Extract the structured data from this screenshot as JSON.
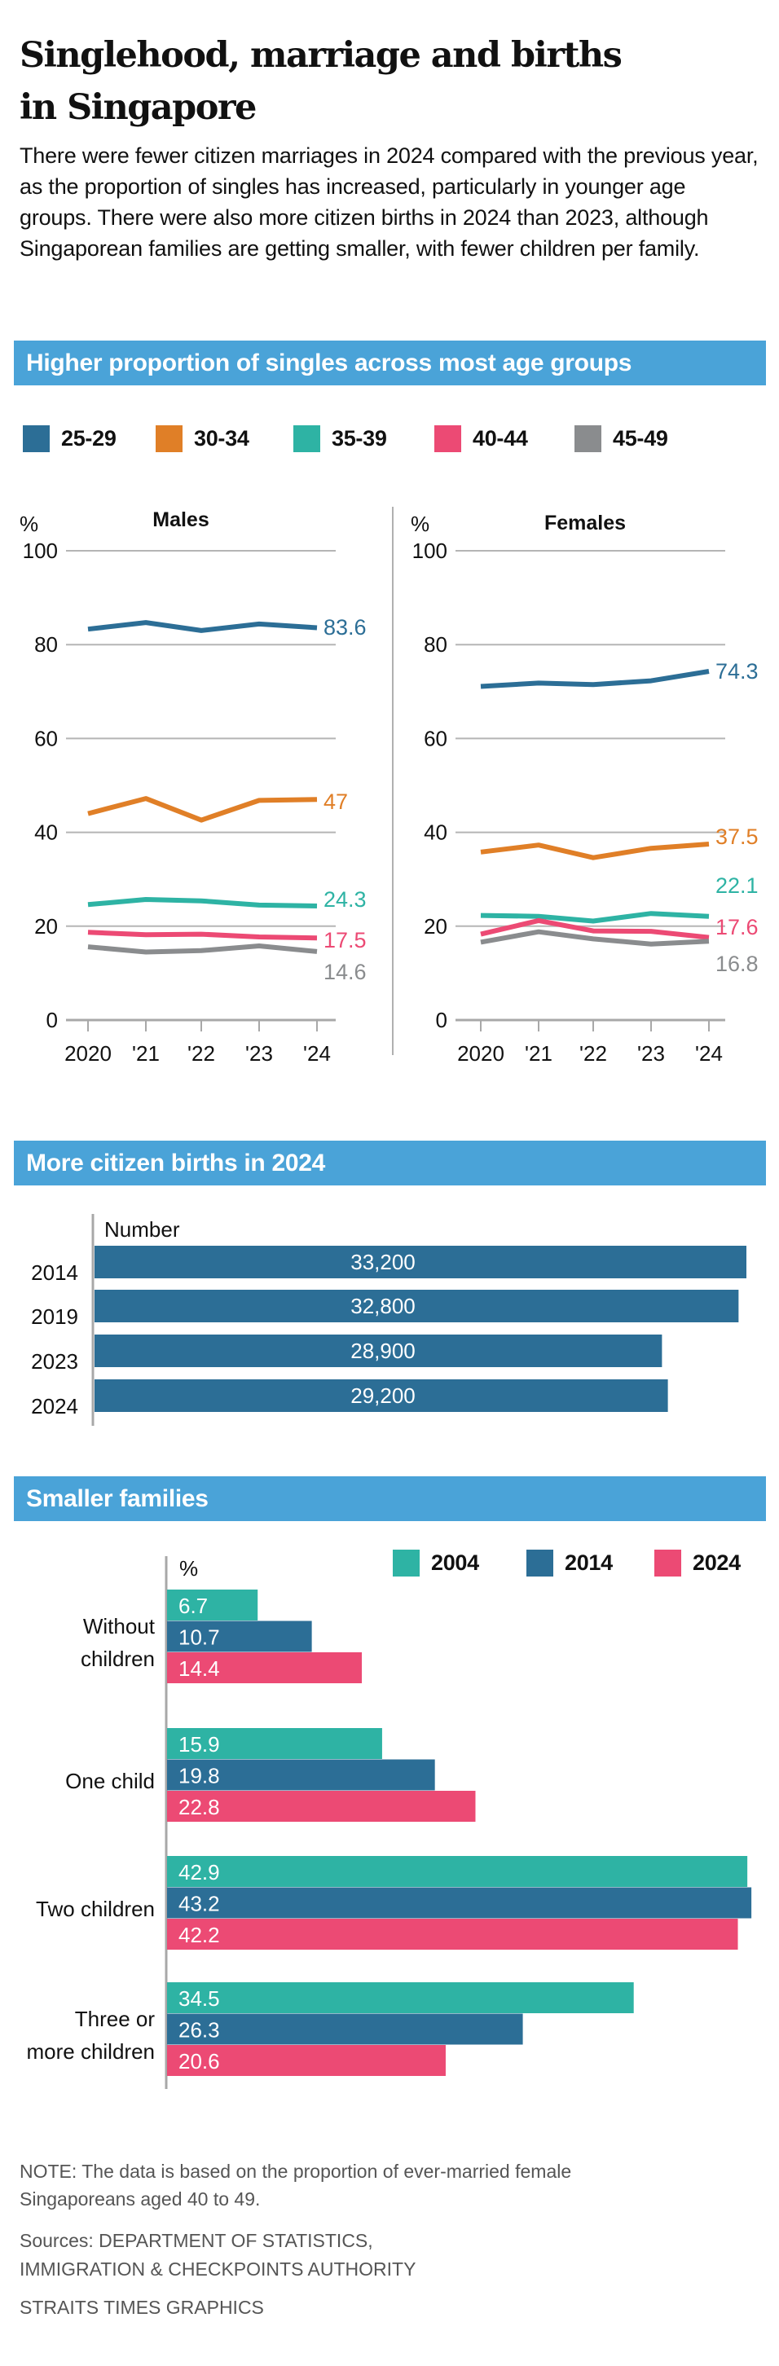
{
  "header": {
    "title_line1": "Singlehood, marriage and births",
    "title_line2": "in Singapore",
    "intro": "There were fewer citizen marriages in 2024 compared with the previous year, as the proportion of singles has increased, particularly in younger age groups. There were also more citizen births in 2024 than 2023, although Singaporean families are getting smaller, with fewer children per family."
  },
  "colors": {
    "section_bar": "#4aa3d8",
    "age_25_29": "#2c6e96",
    "age_30_34": "#e07f27",
    "age_35_39": "#2eb3a4",
    "age_40_44": "#ec4a74",
    "age_45_49": "#8a8c8e",
    "births_bar": "#2c6e96",
    "year_2004": "#2eb3a4",
    "year_2014": "#2c6e96",
    "year_2024": "#ec4a74",
    "gridline": "#b5b5b5"
  },
  "sections": {
    "singles_title": "Higher proportion of singles across most age groups",
    "births_title": "More citizen births in 2024",
    "families_title": "Smaller families"
  },
  "footer": {
    "note": "NOTE: The data is based on the proportion of ever-married female Singaporeans aged 40 to 49.",
    "sources_line1": "Sources: DEPARTMENT OF STATISTICS,",
    "sources_line2": "IMMIGRATION & CHECKPOINTS AUTHORITY",
    "credit": "STRAITS TIMES GRAPHICS"
  },
  "chart_data": [
    {
      "type": "line",
      "title": "Males",
      "ylabel": "%",
      "x": [
        "2020",
        "'21",
        "'22",
        "'23",
        "'24"
      ],
      "yticks": [
        0,
        20,
        40,
        60,
        80,
        100
      ],
      "ylim": [
        0,
        100
      ],
      "grid": true,
      "legend": "top",
      "series": [
        {
          "name": "25-29",
          "color_key": "age_25_29",
          "values": [
            83.3,
            84.7,
            83.0,
            84.4,
            83.6
          ],
          "end_label": "83.6"
        },
        {
          "name": "30-34",
          "color_key": "age_30_34",
          "values": [
            44.0,
            47.2,
            42.6,
            46.8,
            47.0
          ],
          "end_label": "47"
        },
        {
          "name": "35-39",
          "color_key": "age_35_39",
          "values": [
            24.6,
            25.7,
            25.4,
            24.5,
            24.3
          ],
          "end_label": "24.3"
        },
        {
          "name": "40-44",
          "color_key": "age_40_44",
          "values": [
            18.7,
            18.2,
            18.3,
            17.7,
            17.5
          ],
          "end_label": "17.5"
        },
        {
          "name": "45-49",
          "color_key": "age_45_49",
          "values": [
            15.6,
            14.5,
            14.8,
            15.8,
            14.6
          ],
          "end_label": "14.6"
        }
      ]
    },
    {
      "type": "line",
      "title": "Females",
      "ylabel": "%",
      "x": [
        "2020",
        "'21",
        "'22",
        "'23",
        "'24"
      ],
      "yticks": [
        0,
        20,
        40,
        60,
        80,
        100
      ],
      "ylim": [
        0,
        100
      ],
      "grid": true,
      "legend": "top",
      "series": [
        {
          "name": "25-29",
          "color_key": "age_25_29",
          "values": [
            71.1,
            71.8,
            71.5,
            72.3,
            74.3
          ],
          "end_label": "74.3"
        },
        {
          "name": "30-34",
          "color_key": "age_30_34",
          "values": [
            35.8,
            37.3,
            34.6,
            36.6,
            37.5
          ],
          "end_label": "37.5"
        },
        {
          "name": "35-39",
          "color_key": "age_35_39",
          "values": [
            22.3,
            22.1,
            21.1,
            22.7,
            22.1
          ],
          "end_label": "22.1"
        },
        {
          "name": "40-44",
          "color_key": "age_40_44",
          "values": [
            18.3,
            21.2,
            19.0,
            18.9,
            17.6
          ],
          "end_label": "17.6"
        },
        {
          "name": "45-49",
          "color_key": "age_45_49",
          "values": [
            16.6,
            18.8,
            17.3,
            16.2,
            16.8
          ],
          "end_label": "16.8"
        }
      ]
    },
    {
      "type": "bar",
      "title": "More citizen births in 2024",
      "xlabel": "Number",
      "categories": [
        "2014",
        "2019",
        "2023",
        "2024"
      ],
      "values": [
        33200,
        32800,
        28900,
        29200
      ],
      "value_labels": [
        "33,200",
        "32,800",
        "28,900",
        "29,200"
      ],
      "orientation": "horizontal"
    },
    {
      "type": "bar",
      "title": "Smaller families",
      "xlabel": "%",
      "orientation": "horizontal",
      "legend": "top-right",
      "categories": [
        [
          "Without",
          "children"
        ],
        [
          "One child"
        ],
        [
          "Two children"
        ],
        [
          "Three or",
          "more children"
        ]
      ],
      "series": [
        {
          "name": "2004",
          "color_key": "year_2004",
          "values": [
            6.7,
            15.9,
            42.9,
            34.5
          ]
        },
        {
          "name": "2014",
          "color_key": "year_2014",
          "values": [
            10.7,
            19.8,
            43.2,
            26.3
          ]
        },
        {
          "name": "2024",
          "color_key": "year_2024",
          "values": [
            14.4,
            22.8,
            42.2,
            20.6
          ]
        }
      ]
    }
  ]
}
